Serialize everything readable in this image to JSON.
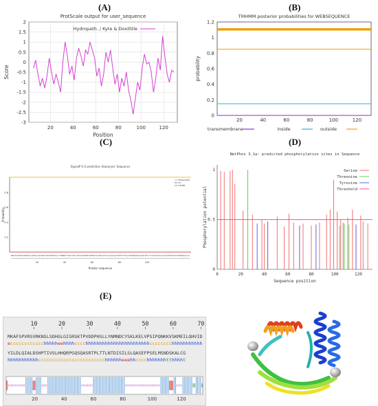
{
  "panels": {
    "A": {
      "letter": "(A)"
    },
    "B": {
      "letter": "(B)"
    },
    "C": {
      "letter": "(C)"
    },
    "D": {
      "letter": "(D)"
    },
    "E": {
      "letter": "(E)"
    }
  },
  "colors": {
    "magenta": "#d43fd4",
    "orange": "#f0a000",
    "cyan": "#2ab0d8",
    "purple": "#8a2be2",
    "red": "#e05050",
    "green": "#40c040",
    "blue": "#4040d0",
    "pink": "#ff40c0",
    "helix_blue": "#2040d0",
    "coil_orange": "#e09000",
    "ext_red": "#d02020",
    "strand_green": "#20a020"
  },
  "chart_data": [
    {
      "id": "A",
      "type": "line",
      "title": "ProtScale output for user_sequence",
      "xlabel": "Position",
      "ylabel": "Score",
      "xlim": [
        1,
        132
      ],
      "ylim": [
        -3,
        2
      ],
      "xticks": [
        "20",
        "40",
        "60",
        "80",
        "100",
        "120"
      ],
      "yticks": [
        "2",
        "1.5",
        "1",
        "0.5",
        "0",
        "-0.5",
        "-1",
        "-1.5",
        "-2",
        "-2.5",
        "-3"
      ],
      "grid": true,
      "legend": "top-right",
      "series": [
        {
          "name": "Hydropath. / Kyte & Doolittle",
          "x": [
            5,
            7,
            9,
            11,
            13,
            15,
            17,
            19,
            21,
            23,
            25,
            27,
            29,
            31,
            33,
            35,
            37,
            39,
            41,
            43,
            45,
            47,
            49,
            51,
            53,
            55,
            57,
            59,
            61,
            63,
            65,
            67,
            69,
            71,
            73,
            75,
            77,
            79,
            81,
            83,
            85,
            87,
            89,
            91,
            93,
            95,
            97,
            99,
            101,
            103,
            105,
            107,
            109,
            111,
            113,
            115,
            117,
            119,
            121,
            123,
            125,
            127,
            129
          ],
          "values": [
            -0.3,
            0.1,
            -0.6,
            -1.2,
            -0.8,
            -1.3,
            -0.7,
            0.2,
            -0.5,
            -1.1,
            -0.6,
            -1.0,
            -1.5,
            0.0,
            1.0,
            0.3,
            -0.6,
            -0.2,
            -0.9,
            0.2,
            0.7,
            0.3,
            -0.2,
            0.6,
            0.4,
            1.0,
            0.6,
            0.2,
            -0.7,
            -0.3,
            -1.2,
            -0.6,
            0.5,
            0.0,
            0.6,
            -0.3,
            -1.1,
            -0.6,
            -1.5,
            -0.8,
            -1.2,
            -0.5,
            -1.4,
            -1.9,
            -2.6,
            -1.8,
            -1.0,
            -1.4,
            -0.3,
            0.4,
            -0.1,
            0.0,
            -0.5,
            -1.5,
            -0.8,
            0.2,
            -0.4,
            1.3,
            0.3,
            -0.6,
            -1.0,
            -0.4,
            -0.5
          ]
        }
      ]
    },
    {
      "id": "B",
      "type": "line",
      "title": "TMHMM posterior probabilities for WEBSEQUENCE",
      "xlabel": "",
      "ylabel": "probability",
      "xlim": [
        1,
        132
      ],
      "ylim": [
        0,
        1.2
      ],
      "xticks": [
        "20",
        "40",
        "60",
        "80",
        "100",
        "120"
      ],
      "yticks": [
        "1.2",
        "1",
        "0.8",
        "0.6",
        "0.4",
        "0.2",
        "0"
      ],
      "legend": "bottom",
      "series": [
        {
          "name": "transmembrane",
          "x": [
            1,
            132
          ],
          "values": [
            0,
            0
          ]
        },
        {
          "name": "inside",
          "x": [
            1,
            132
          ],
          "values": [
            0.15,
            0.15
          ]
        },
        {
          "name": "outside",
          "x": [
            1,
            132
          ],
          "values": [
            0.85,
            0.85
          ]
        }
      ]
    },
    {
      "id": "C",
      "type": "line",
      "title": "SignalP-5.0 prediction (Eukarya): Sequence",
      "xlabel": "Protein sequence",
      "ylabel": "Probability",
      "xlim": [
        0,
        132
      ],
      "ylim": [
        0,
        1
      ],
      "xticks": [
        "20",
        "40",
        "60",
        "80",
        "100"
      ],
      "yticks": [
        "0.8",
        "0.6",
        "0.4",
        "0.2"
      ],
      "legend": "top-right",
      "legend_entries": [
        "SP(Sec/SPI)",
        "CS",
        "OTHER"
      ],
      "series": [
        {
          "name": "OTHER",
          "x": [
            0,
            132
          ],
          "values": [
            1.0,
            1.0
          ]
        },
        {
          "name": "SP(Sec/SPI)",
          "x": [
            0,
            132
          ],
          "values": [
            0.0,
            0.0
          ]
        }
      ]
    },
    {
      "id": "D",
      "type": "bar",
      "title": "NetPhos 3.1a: predicted phosphorylation sites in Sequence",
      "xlabel": "Sequence position",
      "ylabel": "Phosphorylation potential",
      "xlim": [
        0,
        132
      ],
      "ylim": [
        0,
        1.05
      ],
      "xticks": [
        "0",
        "20",
        "40",
        "60",
        "80",
        "100",
        "120"
      ],
      "yticks": [
        "1",
        "0.5",
        "0"
      ],
      "legend": "top-right",
      "threshold": 0.5,
      "series": [
        {
          "name": "Serine",
          "x": [
            3,
            6,
            11,
            13,
            15,
            22,
            30,
            38,
            40,
            51,
            57,
            61,
            65,
            73,
            80,
            87,
            93,
            96,
            99,
            102,
            105,
            107,
            111,
            115,
            118,
            122,
            124,
            128
          ],
          "values": [
            0.99,
            0.98,
            0.99,
            1.0,
            0.86,
            0.59,
            0.55,
            0.5,
            0.46,
            0.53,
            0.43,
            0.56,
            0.47,
            0.46,
            0.44,
            0.47,
            0.55,
            0.6,
            0.9,
            0.58,
            0.5,
            0.47,
            0.52,
            0.6,
            0.45,
            0.54,
            0.48,
            0.46
          ]
        },
        {
          "name": "Threonine",
          "x": [
            26,
            104,
            108,
            112
          ],
          "values": [
            1.0,
            0.44,
            0.46,
            0.45
          ]
        },
        {
          "name": "Tyrosine",
          "x": [
            34,
            43,
            70,
            84,
            118
          ],
          "values": [
            0.46,
            0.48,
            0.44,
            0.45,
            0.45
          ]
        },
        {
          "name": "Threshold",
          "x": [
            0,
            132
          ],
          "values": [
            0.5,
            0.5
          ]
        }
      ]
    }
  ],
  "sopma": {
    "ruler": [
      "10",
      "20",
      "30",
      "40",
      "50",
      "60",
      "70"
    ],
    "seq1": "MKAFSPVRSVRKNSLSDHGLGISRSKTPVDDPHSLLYNMNDCYSKLKELVPSIPQNKKVSKMEILQHVID",
    "ss1": "ecccccccccccchhhhheehhhhcccchhhhhhhhhhhhhhhhhhhhhhhcccccccchhhhhhhhhhh",
    "seq2": "YILDLQIALDSHPTIVSLHHQRPGQSQASRTPLTTLNTDISILSLQASEFPSELMSNDSKALCG",
    "ss2": "hhhhhhhhhhhcccccccccccccccccccccccchhhhhheeehhcccchhhhhhhtthhhht",
    "bar_ticks": [
      "20",
      "40",
      "60",
      "80",
      "100",
      "120"
    ]
  }
}
